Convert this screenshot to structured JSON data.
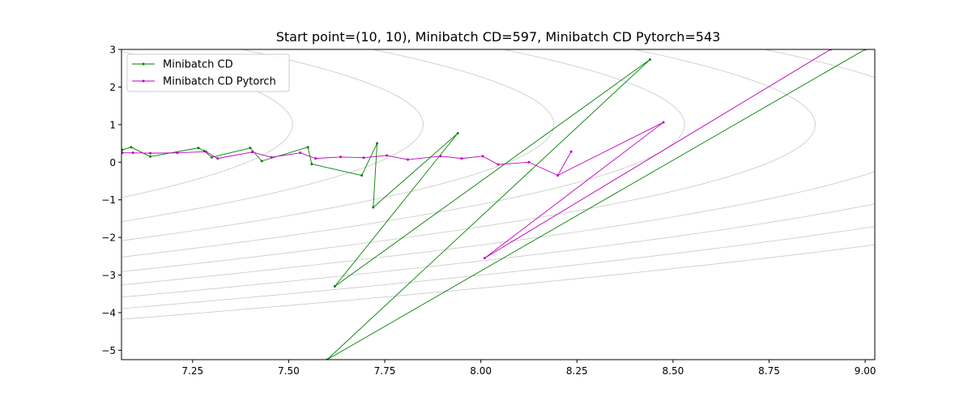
{
  "chart_data": {
    "type": "line",
    "title": "Start point=(10, 10), Minibatch CD=597, Minibatch CD Pytorch=543",
    "xlabel": "",
    "ylabel": "",
    "xlim": [
      7.065,
      9.025
    ],
    "ylim": [
      -5.25,
      3.0
    ],
    "x_ticks": [
      7.25,
      7.5,
      7.75,
      8.0,
      8.25,
      8.5,
      8.75,
      9.0
    ],
    "x_tick_labels": [
      "7.25",
      "7.50",
      "7.75",
      "8.00",
      "8.25",
      "8.50",
      "8.75",
      "9.00"
    ],
    "y_ticks": [
      -5,
      -4,
      -3,
      -2,
      -1,
      0,
      1,
      2,
      3
    ],
    "y_tick_labels": [
      "−5",
      "−4",
      "−3",
      "−2",
      "−1",
      "0",
      "1",
      "2",
      "3"
    ],
    "legend_position": "upper-left",
    "grid": false,
    "contour_color": "#c8c8c8",
    "contours": [
      {
        "vertex": [
          7.51,
          1.0
        ],
        "a": 0.118
      },
      {
        "vertex": [
          7.85,
          1.0
        ],
        "a": 0.118
      },
      {
        "vertex": [
          8.19,
          1.0
        ],
        "a": 0.118
      },
      {
        "vertex": [
          8.53,
          1.0
        ],
        "a": 0.118
      },
      {
        "vertex": [
          8.87,
          1.0
        ],
        "a": 0.118
      },
      {
        "vertex": [
          9.21,
          1.0
        ],
        "a": 0.118
      },
      {
        "vertex": [
          9.55,
          1.0
        ],
        "a": 0.118
      },
      {
        "vertex": [
          9.89,
          1.0
        ],
        "a": 0.118
      },
      {
        "vertex": [
          10.23,
          1.0
        ],
        "a": 0.118
      }
    ],
    "series": [
      {
        "name": "Minibatch CD",
        "color": "#008000",
        "x": [
          7.067,
          7.09,
          7.14,
          7.265,
          7.28,
          7.3,
          7.4,
          7.43,
          7.55,
          7.56,
          7.69,
          7.73,
          7.72,
          7.94,
          7.62,
          8.44,
          7.6,
          9.0
        ],
        "y": [
          0.33,
          0.4,
          0.15,
          0.38,
          0.3,
          0.13,
          0.38,
          0.03,
          0.4,
          -0.05,
          -0.35,
          0.5,
          -1.2,
          0.77,
          -3.3,
          2.73,
          -5.25,
          3.0
        ]
      },
      {
        "name": "Minibatch CD Pytorch",
        "color": "#c000c0",
        "x": [
          7.067,
          7.095,
          7.14,
          7.21,
          7.285,
          7.315,
          7.405,
          7.455,
          7.53,
          7.57,
          7.635,
          7.695,
          7.755,
          7.81,
          7.895,
          7.95,
          8.005,
          8.045,
          8.125,
          8.2,
          8.235,
          8.2,
          8.475,
          8.01,
          8.91
        ],
        "y": [
          0.25,
          0.25,
          0.24,
          0.25,
          0.28,
          0.1,
          0.27,
          0.13,
          0.25,
          0.1,
          0.14,
          0.12,
          0.18,
          0.07,
          0.16,
          0.1,
          0.16,
          -0.06,
          0.0,
          -0.35,
          0.28,
          -0.35,
          1.06,
          -2.55,
          3.0
        ]
      }
    ]
  }
}
